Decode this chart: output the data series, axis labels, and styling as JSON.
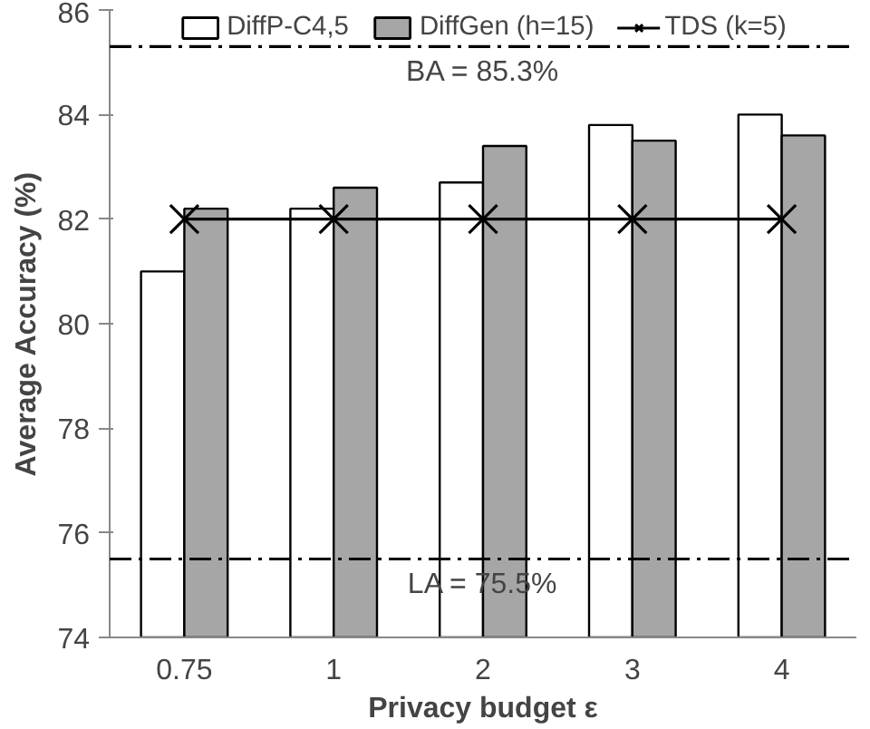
{
  "chart_data": {
    "type": "bar",
    "xlabel": "Privacy budget ε",
    "ylabel": "Average Accuracy (%)",
    "categories": [
      "0.75",
      "1",
      "2",
      "3",
      "4"
    ],
    "series": [
      {
        "name": "DiffP-C4,5",
        "color": "#ffffff",
        "values": [
          81.0,
          82.2,
          82.7,
          83.8,
          84.0
        ]
      },
      {
        "name": "DiffGen (h=15)",
        "color": "#a6a6a6",
        "values": [
          82.2,
          82.6,
          83.4,
          83.5,
          83.6
        ]
      },
      {
        "name": "TDS (k=5)",
        "type": "line",
        "color": "#000000",
        "marker": "cross",
        "values": [
          82.0,
          82.0,
          82.0,
          82.0,
          82.0
        ]
      }
    ],
    "ylim": [
      74,
      86
    ],
    "yticks": [
      74,
      76,
      78,
      80,
      82,
      84,
      86
    ],
    "ref_lines": [
      {
        "axis": "y",
        "value": 85.3,
        "label": "BA = 85.3%",
        "line_style": "dashdot",
        "color": "#000000"
      },
      {
        "axis": "y",
        "value": 75.5,
        "label": "LA = 75.5%",
        "line_style": "dashdot",
        "color": "#000000"
      }
    ],
    "grid": false,
    "legend": "top"
  }
}
